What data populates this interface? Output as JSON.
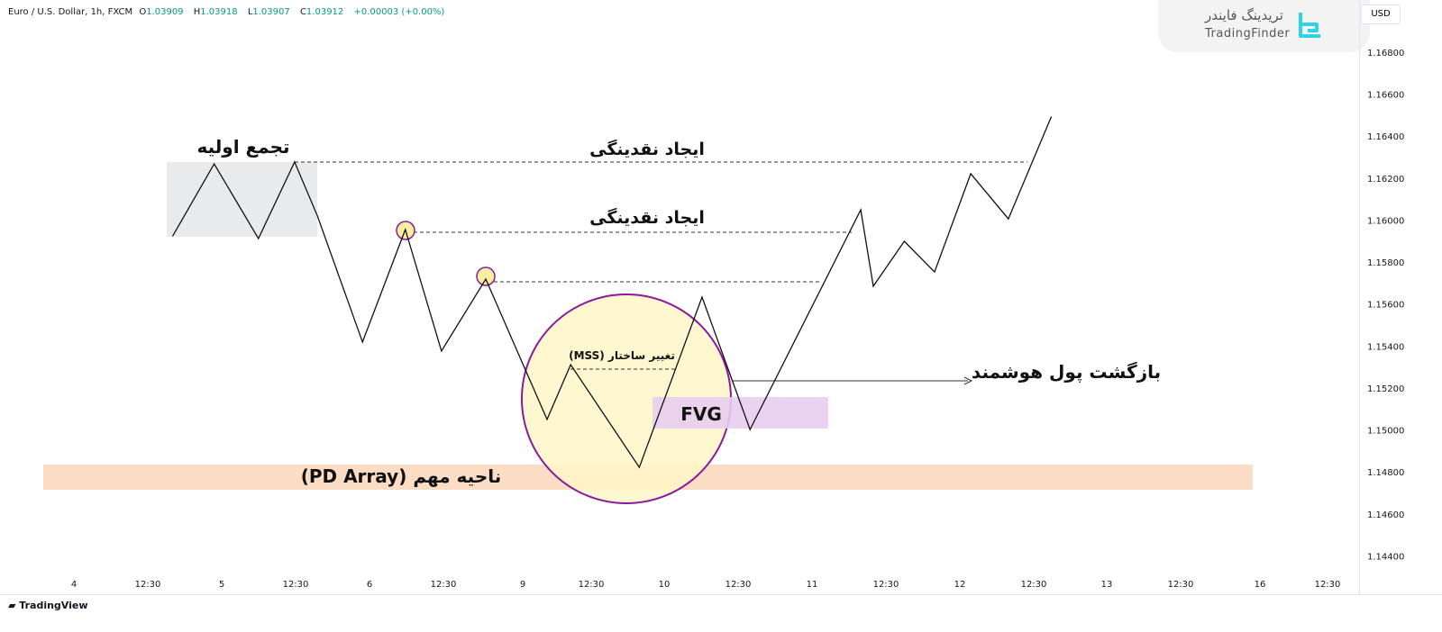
{
  "header": {
    "symbol": "Euro / U.S. Dollar, 1h, FXCM",
    "o_label": "O",
    "o": "1.03909",
    "h_label": "H",
    "h": "1.03918",
    "l_label": "L",
    "l": "1.03907",
    "c_label": "C",
    "c": "1.03912",
    "change": "+0.00003 (+0.00%)"
  },
  "logo": {
    "fa": "تریدینگ فایندر",
    "en": "TradingFinder"
  },
  "currency": "USD",
  "footer": {
    "brand": "TradingView"
  },
  "colors": {
    "line": "#111111",
    "up": "#089981",
    "circle": "#8a1a9c",
    "circle_fill": "#fff6c8",
    "fvg": "#e8cdef",
    "pd": "#fbdcc4",
    "box": "#e9eaeb"
  },
  "annotations": {
    "accumulation": "تجمع اولیه",
    "liquidity1": "ایجاد نقدینگی",
    "liquidity2": "ایجاد نقدینگی",
    "mss": "تغییر ساختار (MSS)",
    "fvg": "FVG",
    "smart_money": "بازگشت پول هوشمند",
    "pd_array": "ناحیه مهم (PD Array)"
  },
  "chart_data": {
    "type": "line",
    "title": "Euro / U.S. Dollar, 1h, FXCM",
    "xlabel": "",
    "ylabel": "USD",
    "ylim": [
      1.1436,
      1.1693
    ],
    "x_ticks": [
      "4",
      "12:30",
      "5",
      "12:30",
      "6",
      "12:30",
      "9",
      "12:30",
      "10",
      "12:30",
      "11",
      "12:30",
      "12",
      "12:30",
      "13",
      "12:30",
      "16",
      "12:30"
    ],
    "y_ticks": [
      "1.16800",
      "1.16600",
      "1.16400",
      "1.16200",
      "1.16000",
      "1.15800",
      "1.15600",
      "1.15400",
      "1.15200",
      "1.15000",
      "1.14800",
      "1.14600",
      "1.14400"
    ],
    "series": [
      {
        "name": "price path",
        "points": [
          [
            1.34,
            1.15925
          ],
          [
            1.9,
            1.16268
          ],
          [
            2.5,
            1.15912
          ],
          [
            2.99,
            1.16277
          ],
          [
            3.3,
            1.16019
          ],
          [
            3.91,
            1.15419
          ],
          [
            4.49,
            1.15955
          ],
          [
            4.98,
            1.15376
          ],
          [
            5.58,
            1.15719
          ],
          [
            6.41,
            1.1505
          ],
          [
            6.73,
            1.15311
          ],
          [
            7.66,
            1.14822
          ],
          [
            8.51,
            1.15633
          ],
          [
            9.16,
            1.15002
          ],
          [
            10.66,
            1.16049
          ],
          [
            10.83,
            1.15685
          ],
          [
            11.25,
            1.15899
          ],
          [
            11.66,
            1.15753
          ],
          [
            12.15,
            1.16221
          ],
          [
            12.66,
            1.16006
          ],
          [
            13.24,
            1.16491
          ]
        ]
      }
    ]
  }
}
